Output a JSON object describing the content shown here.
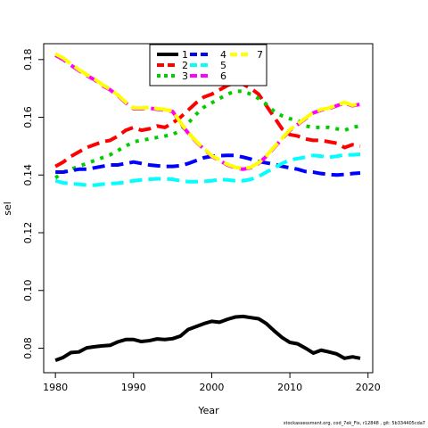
{
  "chart_data": {
    "type": "line",
    "title": "",
    "xlabel": "Year",
    "ylabel": "sel",
    "xlim": [
      1978.5,
      2020.6
    ],
    "ylim": [
      0.0715,
      0.1855
    ],
    "xticks": [
      1980,
      1990,
      2000,
      2010,
      2020
    ],
    "yticks": [
      0.08,
      0.1,
      0.12,
      0.14,
      0.16,
      0.18
    ],
    "ytick_labels": [
      "0.08",
      "0.10",
      "0.12",
      "0.14",
      "0.16",
      "0.18"
    ],
    "legend_position": "top-center",
    "x": [
      1980,
      1981,
      1982,
      1983,
      1984,
      1985,
      1986,
      1987,
      1988,
      1989,
      1990,
      1991,
      1992,
      1993,
      1994,
      1995,
      1996,
      1997,
      1998,
      1999,
      2000,
      2001,
      2002,
      2003,
      2004,
      2005,
      2006,
      2007,
      2008,
      2009,
      2010,
      2011,
      2012,
      2013,
      2014,
      2015,
      2016,
      2017,
      2018,
      2019
    ],
    "series": [
      {
        "name": "1",
        "color": "#000000",
        "dash": "solid",
        "values": [
          0.0758,
          0.0768,
          0.0785,
          0.0787,
          0.0801,
          0.0805,
          0.0808,
          0.081,
          0.0822,
          0.083,
          0.083,
          0.0823,
          0.0826,
          0.0832,
          0.083,
          0.0833,
          0.0842,
          0.0865,
          0.0875,
          0.0885,
          0.0893,
          0.089,
          0.09,
          0.0908,
          0.091,
          0.0906,
          0.0902,
          0.0885,
          0.086,
          0.0837,
          0.082,
          0.0815,
          0.08,
          0.0783,
          0.0793,
          0.0787,
          0.078,
          0.0765,
          0.077,
          0.0765
        ]
      },
      {
        "name": "2",
        "color": "#ff0000",
        "dash": "dashed",
        "values": [
          0.143,
          0.1445,
          0.1465,
          0.148,
          0.1495,
          0.1505,
          0.1515,
          0.152,
          0.1535,
          0.1555,
          0.1565,
          0.1555,
          0.156,
          0.157,
          0.1565,
          0.158,
          0.16,
          0.1625,
          0.165,
          0.167,
          0.168,
          0.1695,
          0.171,
          0.172,
          0.1715,
          0.17,
          0.168,
          0.164,
          0.16,
          0.156,
          0.154,
          0.1535,
          0.1525,
          0.152,
          0.152,
          0.1515,
          0.151,
          0.1495,
          0.1505,
          0.15
        ]
      },
      {
        "name": "3",
        "color": "#00cd00",
        "dash": "dotted",
        "values": [
          0.139,
          0.141,
          0.142,
          0.143,
          0.144,
          0.145,
          0.146,
          0.147,
          0.1485,
          0.15,
          0.1515,
          0.152,
          0.1525,
          0.153,
          0.1535,
          0.154,
          0.1555,
          0.158,
          0.161,
          0.1635,
          0.165,
          0.1665,
          0.168,
          0.169,
          0.169,
          0.168,
          0.1665,
          0.1645,
          0.162,
          0.1605,
          0.1595,
          0.159,
          0.157,
          0.1565,
          0.1565,
          0.1565,
          0.156,
          0.1555,
          0.1565,
          0.157
        ]
      },
      {
        "name": "4",
        "color": "#0000ff",
        "dash": "dashed",
        "values": [
          0.141,
          0.141,
          0.1415,
          0.142,
          0.142,
          0.1425,
          0.143,
          0.1435,
          0.1435,
          0.144,
          0.1445,
          0.144,
          0.1435,
          0.1432,
          0.143,
          0.143,
          0.1432,
          0.144,
          0.145,
          0.146,
          0.1465,
          0.1467,
          0.1468,
          0.1468,
          0.1462,
          0.1455,
          0.1447,
          0.1442,
          0.1437,
          0.143,
          0.1425,
          0.142,
          0.1412,
          0.141,
          0.1405,
          0.1402,
          0.14,
          0.1402,
          0.1405,
          0.1407
        ]
      },
      {
        "name": "5",
        "color": "#00ffff",
        "dash": "dashed",
        "values": [
          0.138,
          0.1373,
          0.137,
          0.1368,
          0.1365,
          0.1365,
          0.1368,
          0.137,
          0.1372,
          0.1375,
          0.138,
          0.1383,
          0.1385,
          0.1387,
          0.1387,
          0.1385,
          0.138,
          0.1377,
          0.1377,
          0.1378,
          0.138,
          0.1385,
          0.1383,
          0.138,
          0.138,
          0.1385,
          0.1395,
          0.141,
          0.1425,
          0.144,
          0.1452,
          0.1457,
          0.1462,
          0.1468,
          0.1465,
          0.1462,
          0.1465,
          0.147,
          0.147,
          0.1472
        ]
      },
      {
        "name": "6",
        "color": "#ff00ff",
        "dash": "dashed",
        "values": [
          0.1815,
          0.18,
          0.178,
          0.1762,
          0.1745,
          0.173,
          0.171,
          0.1695,
          0.1675,
          0.165,
          0.163,
          0.163,
          0.1632,
          0.1628,
          0.1625,
          0.162,
          0.158,
          0.1545,
          0.1515,
          0.149,
          0.1465,
          0.145,
          0.1435,
          0.1425,
          0.142,
          0.1425,
          0.144,
          0.1465,
          0.1495,
          0.1525,
          0.1555,
          0.1575,
          0.1595,
          0.1615,
          0.1625,
          0.163,
          0.164,
          0.165,
          0.164,
          0.1645
        ]
      },
      {
        "name": "7",
        "color": "#ffff00",
        "dash": "longdash",
        "values": [
          0.182,
          0.1805,
          0.1785,
          0.1765,
          0.1748,
          0.1733,
          0.1713,
          0.1697,
          0.1677,
          0.1652,
          0.1632,
          0.1632,
          0.1634,
          0.163,
          0.1627,
          0.1622,
          0.1582,
          0.1547,
          0.1517,
          0.1492,
          0.1467,
          0.1452,
          0.1437,
          0.1427,
          0.1422,
          0.1427,
          0.1442,
          0.1467,
          0.1497,
          0.1527,
          0.1557,
          0.1577,
          0.1597,
          0.1617,
          0.1627,
          0.1632,
          0.1642,
          0.1652,
          0.1642,
          0.1647
        ]
      }
    ]
  },
  "footnote": "stockassessment.org, cod_7ek_Fix, r12848 , git: 5b334405cda7"
}
